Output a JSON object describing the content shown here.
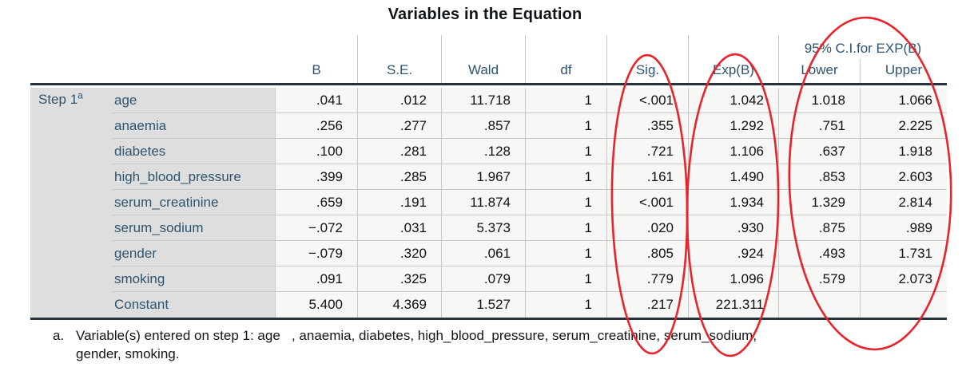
{
  "title": "Variables in the Equation",
  "chart_data": {
    "type": "table",
    "title": "Variables in the Equation",
    "step_label": "Step 1",
    "step_footnote_marker": "a",
    "column_headers": [
      "B",
      "S.E.",
      "Wald",
      "df",
      "Sig.",
      "Exp(B)"
    ],
    "ci_group_header": "95% C.I.for EXP(B)",
    "ci_subheaders": [
      "Lower",
      "Upper"
    ],
    "rows": [
      {
        "label": "age",
        "b": ".041",
        "se": ".012",
        "wald": "11.718",
        "df": "1",
        "sig": "<.001",
        "exp_b": "1.042",
        "ci_lower": "1.018",
        "ci_upper": "1.066"
      },
      {
        "label": "anaemia",
        "b": ".256",
        "se": ".277",
        "wald": ".857",
        "df": "1",
        "sig": ".355",
        "exp_b": "1.292",
        "ci_lower": ".751",
        "ci_upper": "2.225"
      },
      {
        "label": "diabetes",
        "b": ".100",
        "se": ".281",
        "wald": ".128",
        "df": "1",
        "sig": ".721",
        "exp_b": "1.106",
        "ci_lower": ".637",
        "ci_upper": "1.918"
      },
      {
        "label": "high_blood_pressure",
        "b": ".399",
        "se": ".285",
        "wald": "1.967",
        "df": "1",
        "sig": ".161",
        "exp_b": "1.490",
        "ci_lower": ".853",
        "ci_upper": "2.603"
      },
      {
        "label": "serum_creatinine",
        "b": ".659",
        "se": ".191",
        "wald": "11.874",
        "df": "1",
        "sig": "<.001",
        "exp_b": "1.934",
        "ci_lower": "1.329",
        "ci_upper": "2.814"
      },
      {
        "label": "serum_sodium",
        "b": "−.072",
        "se": ".031",
        "wald": "5.373",
        "df": "1",
        "sig": ".020",
        "exp_b": ".930",
        "ci_lower": ".875",
        "ci_upper": ".989"
      },
      {
        "label": "gender",
        "b": "−.079",
        "se": ".320",
        "wald": ".061",
        "df": "1",
        "sig": ".805",
        "exp_b": ".924",
        "ci_lower": ".493",
        "ci_upper": "1.731"
      },
      {
        "label": "smoking",
        "b": ".091",
        "se": ".325",
        "wald": ".079",
        "df": "1",
        "sig": ".779",
        "exp_b": "1.096",
        "ci_lower": ".579",
        "ci_upper": "2.073"
      },
      {
        "label": "Constant",
        "b": "5.400",
        "se": "4.369",
        "wald": "1.527",
        "df": "1",
        "sig": ".217",
        "exp_b": "221.311",
        "ci_lower": "",
        "ci_upper": ""
      }
    ],
    "footnote_marker": "a.",
    "footnote_line1": "Variable(s) entered on step 1: age   , anaemia, diabetes, high_blood_pressure, serum_creatinine, serum_sodium,",
    "footnote_line2": "gender, smoking.",
    "annotations": {
      "shape": "hand-drawn red ellipses",
      "color": "#e8232a",
      "ellipses": [
        {
          "around": "Sig. column"
        },
        {
          "around": "Exp(B) column"
        },
        {
          "around": "95% C.I.for EXP(B) Lower and Upper columns"
        }
      ]
    },
    "layout_hints": {
      "header_text_color": "#2e5470",
      "stub_background": "#dedede",
      "data_background": "#f7f7f6",
      "rule_color": "#26323e"
    }
  }
}
